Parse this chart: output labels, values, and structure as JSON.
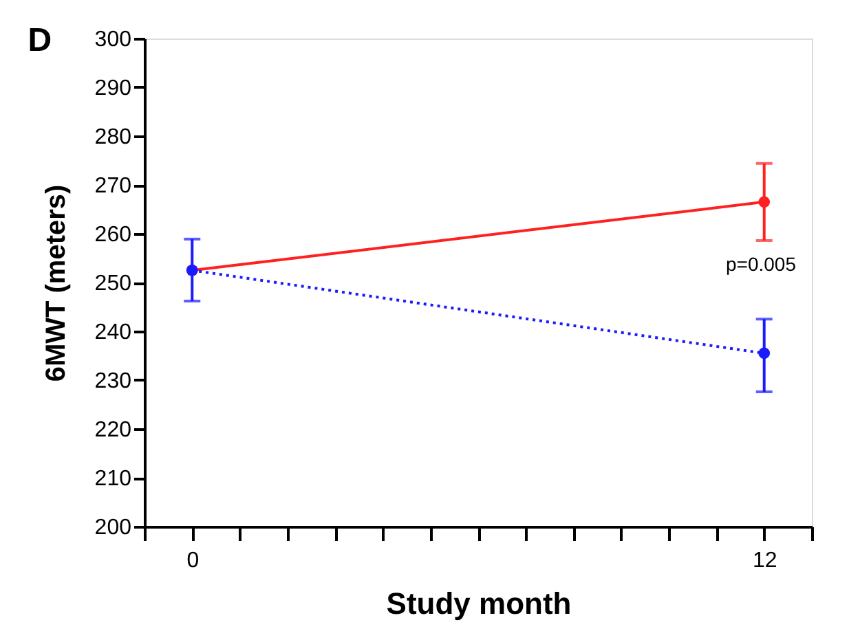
{
  "chart_data": {
    "type": "line",
    "title": "D",
    "xlabel": "Study month",
    "ylabel": "6MWT (meters)",
    "x": [
      0,
      12
    ],
    "series": [
      {
        "color": "#ff2020",
        "values": [
          252.5,
          266.5
        ],
        "errors": [
          null,
          [
            258.6,
            274.4
          ]
        ],
        "line_style": "solid"
      },
      {
        "color": "#1a1aff",
        "values": [
          252.5,
          235.5
        ],
        "errors": [
          [
            246.2,
            258.9
          ],
          [
            227.6,
            242.5
          ]
        ],
        "line_style": "dotted"
      }
    ],
    "xlim": [
      -1,
      13
    ],
    "xticks": [
      {
        "value": -1,
        "label": null
      },
      0,
      {
        "value": 1,
        "label": null
      },
      {
        "value": 2,
        "label": null
      },
      {
        "value": 3,
        "label": null
      },
      {
        "value": 4,
        "label": null
      },
      {
        "value": 5,
        "label": null
      },
      {
        "value": 6,
        "label": null
      },
      {
        "value": 7,
        "label": null
      },
      {
        "value": 8,
        "label": null
      },
      {
        "value": 9,
        "label": null
      },
      {
        "value": 10,
        "label": null
      },
      {
        "value": 11,
        "label": null
      },
      12,
      {
        "value": 13,
        "label": null
      }
    ],
    "ylim": [
      200,
      300
    ],
    "yticks": [
      200,
      210,
      220,
      230,
      240,
      250,
      260,
      270,
      280,
      290,
      300
    ],
    "annotations": [
      "p=0.005"
    ],
    "marker": "circle",
    "grid": false
  }
}
